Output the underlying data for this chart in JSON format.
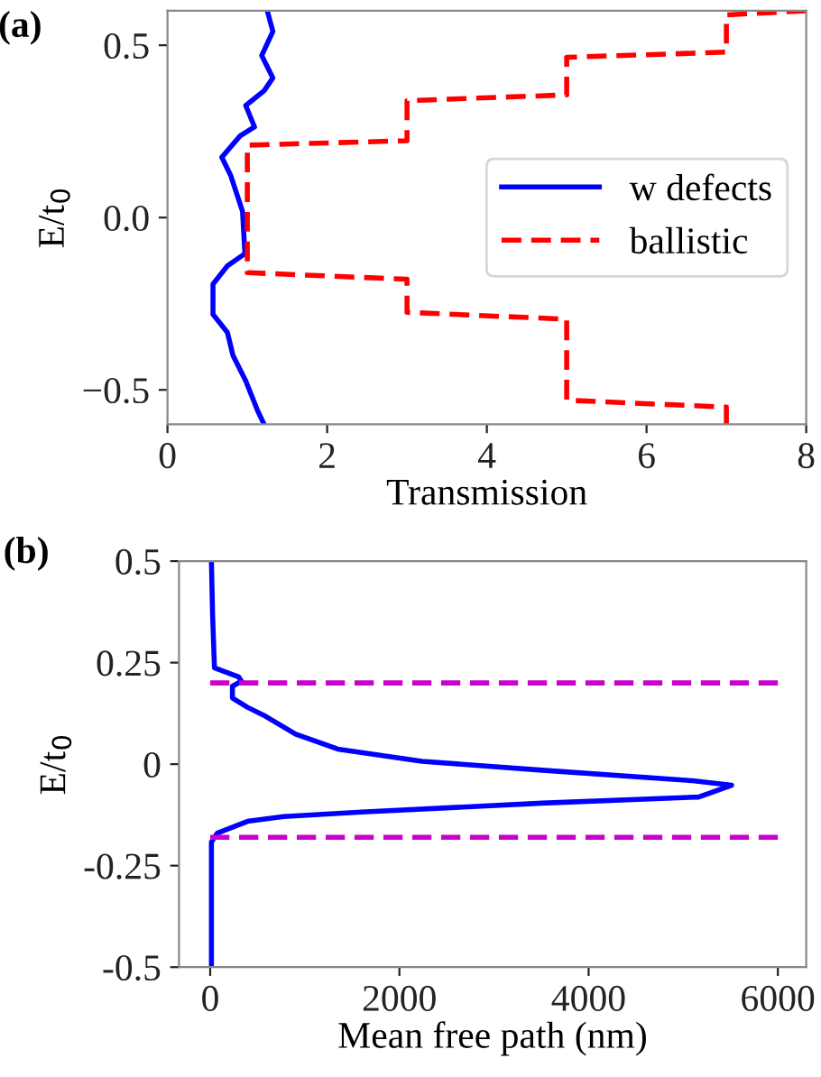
{
  "chart_data": [
    {
      "type": "line",
      "annotations": [
        "(a)"
      ],
      "xlabel": "Transmission",
      "ylabel": "E/t$_{0}$",
      "xlim": [
        0,
        8
      ],
      "ylim": [
        -0.6,
        0.6
      ],
      "xticks": [
        0,
        2,
        4,
        6,
        8
      ],
      "yticks": [
        {
          "value": -0.5,
          "label": "−0.5"
        },
        {
          "value": 0.0,
          "label": "0.0"
        },
        {
          "value": 0.5,
          "label": "0.5"
        }
      ],
      "legend": "right",
      "grid": false,
      "series": [
        {
          "name": "w defects",
          "color": "#0000ff",
          "line_style": "solid",
          "x": [
            1.25,
            1.32,
            1.18,
            1.32,
            1.21,
            0.98,
            1.09,
            0.91,
            0.68,
            0.79,
            0.94,
            0.97,
            0.75,
            0.57,
            0.57,
            0.75,
            0.82,
            0.98,
            1.13,
            1.21
          ],
          "values": [
            0.6,
            0.54,
            0.47,
            0.405,
            0.368,
            0.325,
            0.263,
            0.237,
            0.175,
            0.123,
            0.018,
            -0.105,
            -0.14,
            -0.193,
            -0.281,
            -0.333,
            -0.4,
            -0.474,
            -0.561,
            -0.6
          ]
        },
        {
          "name": "ballistic",
          "color": "#ff0000",
          "line_style": "dashed",
          "x": [
            7,
            7,
            5,
            5,
            3,
            3,
            1,
            1,
            3,
            3,
            5,
            5,
            7,
            7,
            8
          ],
          "values": [
            -0.6,
            -0.55,
            -0.53,
            -0.295,
            -0.275,
            -0.179,
            -0.16,
            0.21,
            0.223,
            0.339,
            0.356,
            0.465,
            0.48,
            0.588,
            0.6
          ]
        }
      ]
    },
    {
      "type": "line",
      "annotations": [
        "(b)"
      ],
      "xlabel": "Mean free path (nm)",
      "ylabel": "E/t$_{0}$",
      "xlim": [
        -330,
        6300
      ],
      "ylim": [
        -0.5,
        0.5
      ],
      "xticks": [
        0,
        2000,
        4000,
        6000
      ],
      "yticks": [
        {
          "value": -0.5,
          "label": "-0.5"
        },
        {
          "value": -0.25,
          "label": "-0.25"
        },
        {
          "value": 0,
          "label": "0"
        },
        {
          "value": 0.25,
          "label": "0.25"
        },
        {
          "value": 0.5,
          "label": "0.5"
        }
      ],
      "legend": false,
      "grid": false,
      "series": [
        {
          "color": "#0000ff",
          "line_style": "solid",
          "x": [
            13,
            25,
            45,
            300,
            330,
            235,
            235,
            394,
            585,
            903,
            1348,
            2238,
            3509,
            5099,
            5512,
            5162,
            3509,
            1602,
            776,
            394,
            76,
            13,
            13
          ],
          "values": [
            0.5,
            0.37,
            0.237,
            0.215,
            0.204,
            0.192,
            0.163,
            0.14,
            0.118,
            0.074,
            0.037,
            0.007,
            -0.015,
            -0.041,
            -0.052,
            -0.081,
            -0.096,
            -0.118,
            -0.129,
            -0.141,
            -0.17,
            -0.192,
            -0.5
          ]
        },
        {
          "color": "#cc00cc",
          "line_style": "dashed",
          "x": [
            0,
            6000
          ],
          "values": [
            0.2,
            0.2
          ]
        },
        {
          "color": "#cc00cc",
          "line_style": "dashed",
          "x": [
            0,
            6000
          ],
          "values": [
            -0.18,
            -0.18
          ]
        }
      ]
    }
  ]
}
